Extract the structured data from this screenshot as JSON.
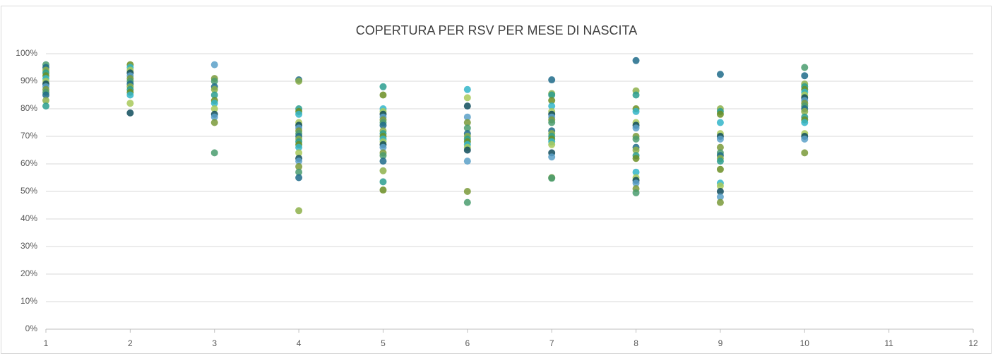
{
  "chart_data": {
    "type": "scatter",
    "title": "COPERTURA PER RSV PER MESE DI NASCITA",
    "x": [
      1,
      1,
      1,
      1,
      1,
      1,
      1,
      1,
      1,
      1,
      1,
      1,
      1,
      1,
      2,
      2,
      2,
      2,
      2,
      2,
      2,
      2,
      2,
      2,
      2,
      2,
      2,
      2,
      3,
      3,
      3,
      3,
      3,
      3,
      3,
      3,
      3,
      3,
      3,
      3,
      3,
      4,
      4,
      4,
      4,
      4,
      4,
      4,
      4,
      4,
      4,
      4,
      4,
      4,
      4,
      4,
      4,
      4,
      4,
      4,
      4,
      4,
      4,
      5,
      5,
      5,
      5,
      5,
      5,
      5,
      5,
      5,
      5,
      5,
      5,
      5,
      5,
      5,
      5,
      5,
      5,
      5,
      5,
      5,
      5,
      6,
      6,
      6,
      6,
      6,
      6,
      6,
      6,
      6,
      6,
      6,
      6,
      6,
      6,
      6,
      6,
      7,
      7,
      7,
      7,
      7,
      7,
      7,
      7,
      7,
      7,
      7,
      7,
      7,
      7,
      7,
      7,
      7,
      7,
      7,
      7,
      8,
      8,
      8,
      8,
      8,
      8,
      8,
      8,
      8,
      8,
      8,
      8,
      8,
      8,
      8,
      8,
      8,
      8,
      8,
      8,
      9,
      9,
      9,
      9,
      9,
      9,
      9,
      9,
      9,
      9,
      9,
      9,
      9,
      9,
      9,
      9,
      9,
      9,
      9,
      10,
      10,
      10,
      10,
      10,
      10,
      10,
      10,
      10,
      10,
      10,
      10,
      10,
      10,
      10,
      10,
      10,
      10,
      10,
      10
    ],
    "values": [
      96,
      95,
      94,
      93,
      92,
      91,
      90,
      89,
      88,
      87,
      86,
      85,
      83,
      81,
      96,
      95,
      94,
      93,
      92,
      91,
      90,
      89,
      88,
      87,
      86,
      85,
      82,
      78.5,
      96,
      91,
      90,
      88,
      87,
      85,
      83,
      82,
      80,
      78,
      77,
      75,
      64,
      90.5,
      90,
      80,
      79,
      78,
      75,
      74,
      73,
      72,
      71,
      70,
      69,
      68,
      67,
      66,
      64,
      62,
      61,
      59,
      57,
      55,
      43,
      88,
      85,
      80,
      79,
      78,
      77,
      76,
      75,
      74,
      72,
      71,
      70,
      69,
      68,
      67,
      66,
      64,
      63,
      61,
      57.5,
      53.5,
      50.5,
      87,
      84,
      81,
      77,
      75,
      73,
      71,
      70,
      69,
      68,
      67,
      66,
      65,
      61,
      50,
      46,
      90.5,
      85.5,
      85,
      83,
      81,
      79,
      78,
      77,
      76,
      75,
      72,
      71,
      70,
      69,
      68,
      67,
      64,
      62.5,
      55,
      54.8,
      97.5,
      86.5,
      85,
      80,
      79,
      75,
      74,
      73,
      70,
      69,
      66,
      65,
      63,
      62,
      57,
      55,
      54,
      53,
      51,
      49.5,
      92.5,
      80,
      79,
      78,
      75,
      71,
      70,
      69,
      66,
      64,
      63,
      62,
      61,
      58,
      53,
      52,
      50,
      48,
      46,
      95,
      92,
      89,
      88,
      87,
      86,
      85,
      84,
      83,
      82,
      81,
      80,
      79,
      77,
      76,
      75,
      71,
      70,
      69,
      64
    ],
    "palette": [
      "#4a9c6e",
      "#1e6b8a",
      "#8db04a",
      "#2a9d8f",
      "#6b8e23",
      "#33b5c9",
      "#a8c95a",
      "#0f4c5c",
      "#5aa0c8",
      "#7a9a3a"
    ],
    "xlim": [
      1,
      12
    ],
    "xticks": [
      1,
      2,
      3,
      4,
      5,
      6,
      7,
      8,
      9,
      10,
      11,
      12
    ],
    "ylim": [
      0,
      100
    ],
    "yticks": [
      {
        "value": 0,
        "label": "0%"
      },
      {
        "value": 10,
        "label": "10%"
      },
      {
        "value": 20,
        "label": "20%"
      },
      {
        "value": 30,
        "label": "30%"
      },
      {
        "value": 40,
        "label": "40%"
      },
      {
        "value": 50,
        "label": "50%"
      },
      {
        "value": 60,
        "label": "60%"
      },
      {
        "value": 70,
        "label": "70%"
      },
      {
        "value": 80,
        "label": "80%"
      },
      {
        "value": 90,
        "label": "90%"
      },
      {
        "value": 100,
        "label": "100%"
      }
    ],
    "grid": true
  }
}
